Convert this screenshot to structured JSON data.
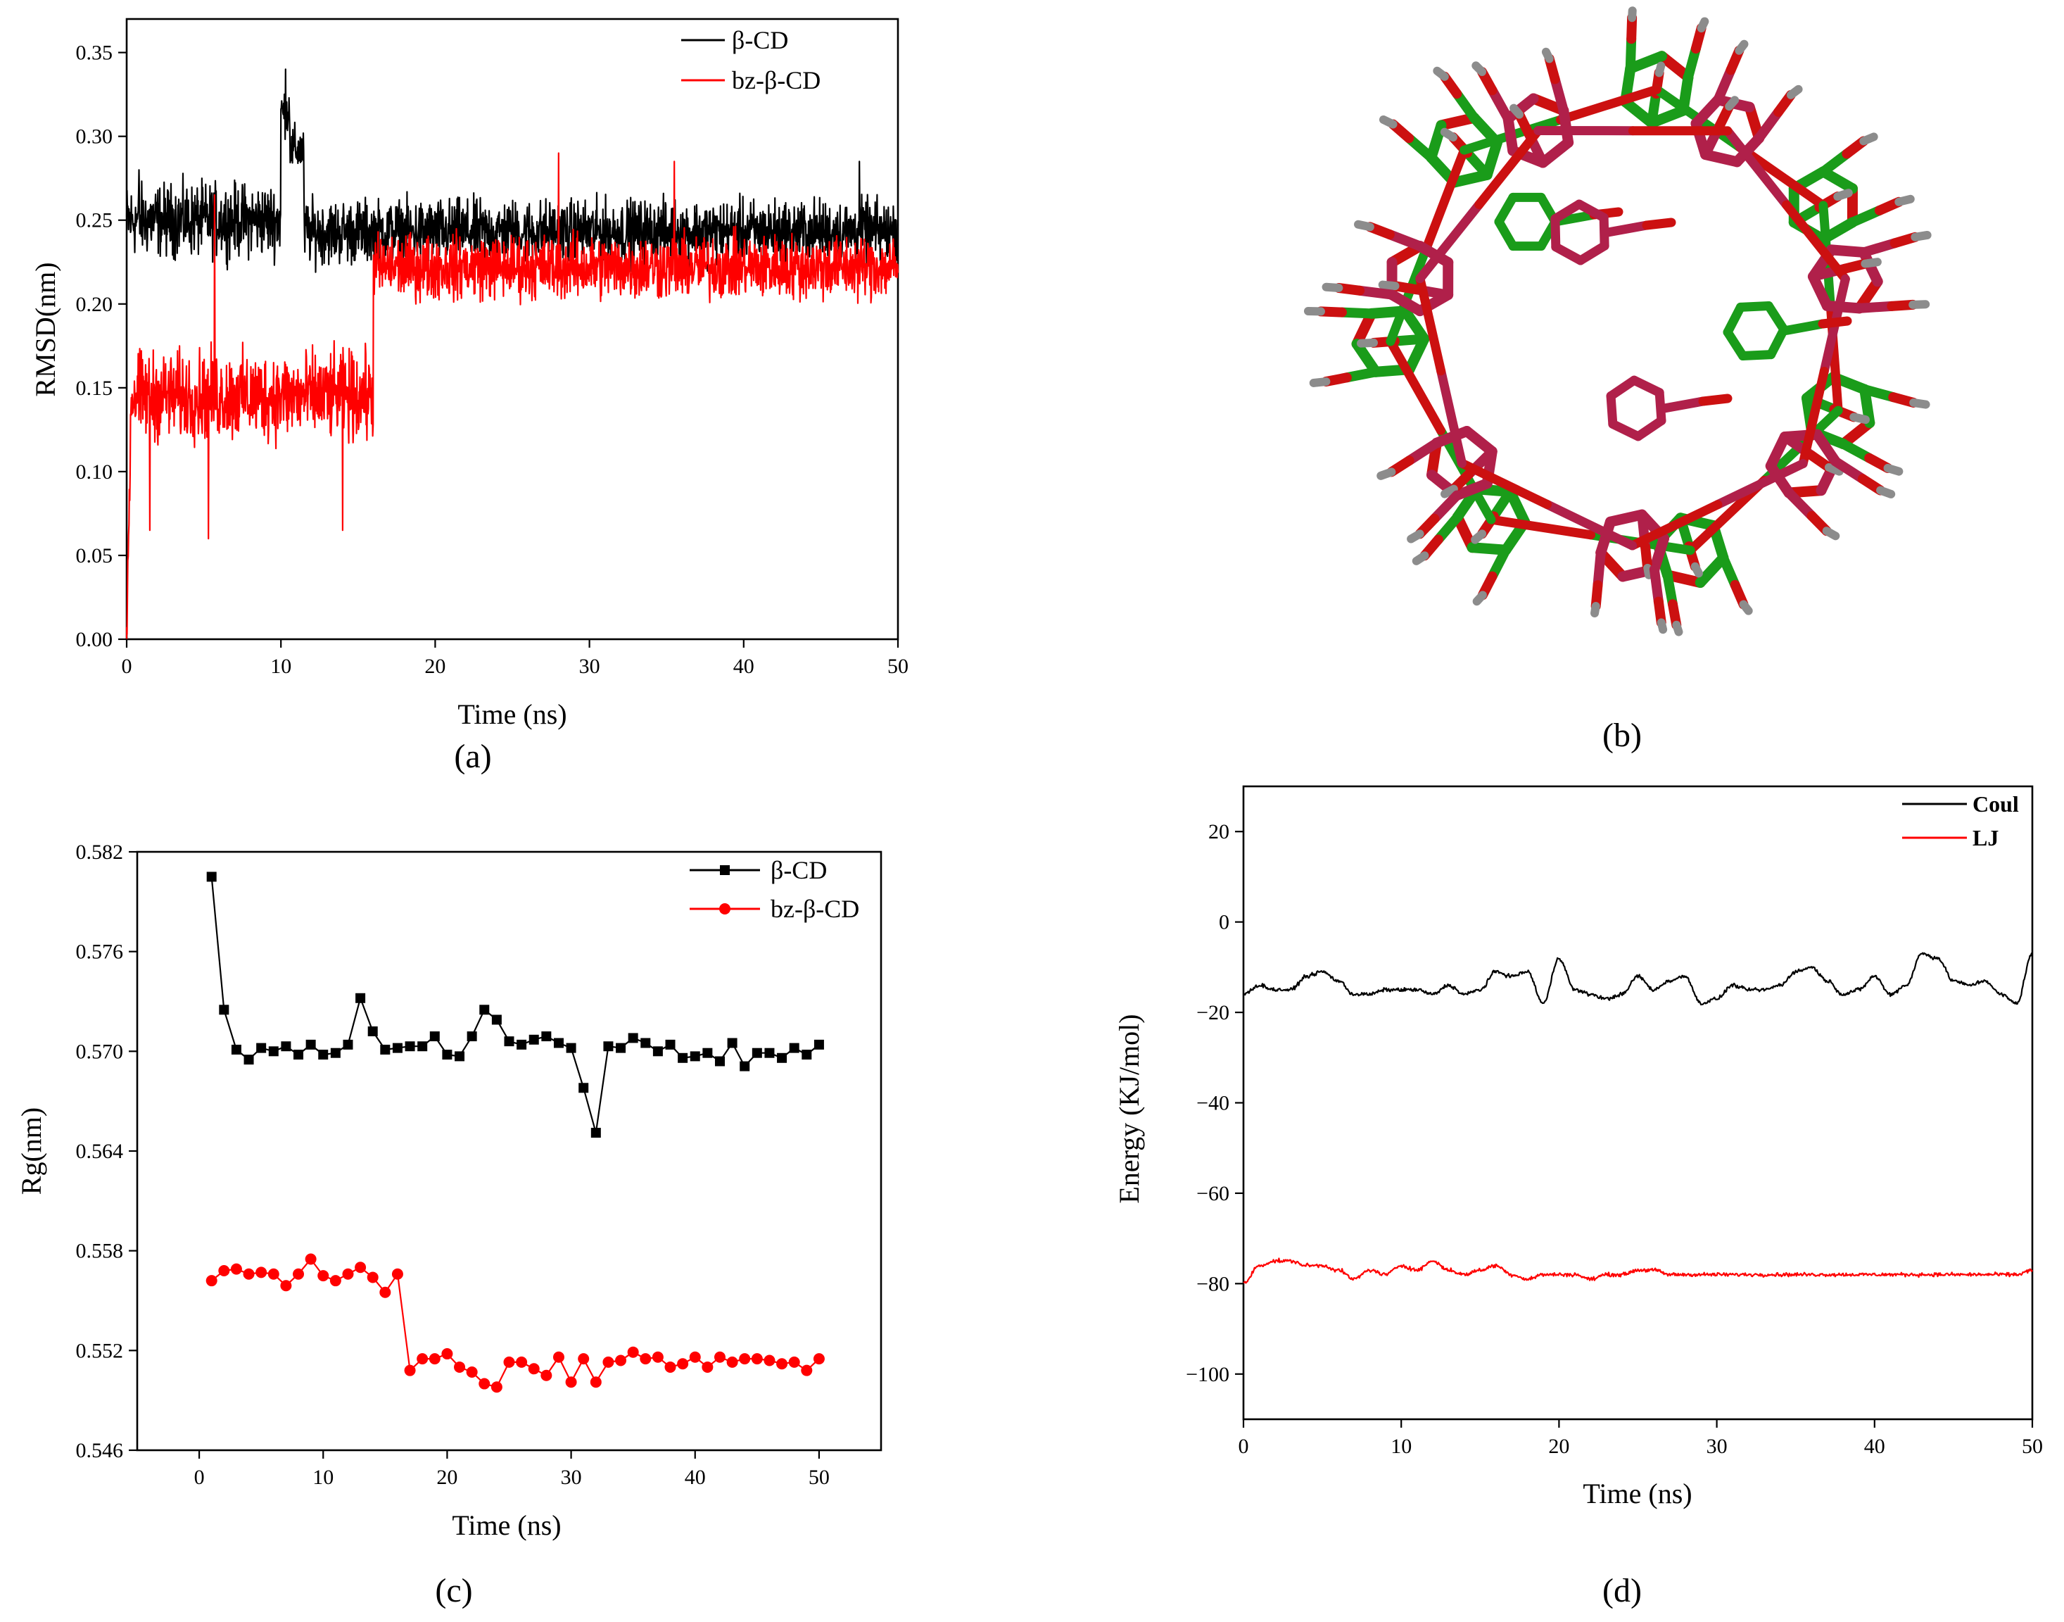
{
  "panels": {
    "a": {
      "label": "(a)"
    },
    "b": {
      "label": "(b)",
      "image_description": "molecular structure overlay"
    },
    "c": {
      "label": "(c)"
    },
    "d": {
      "label": "(d)"
    }
  },
  "colors": {
    "black": "#000000",
    "red": "#ff0000",
    "green": "#1a9c1a",
    "crimson": "#b0204a",
    "oxygen": "#cc1010",
    "hydrogen": "#8c8c8c"
  },
  "chart_data": [
    {
      "id": "a",
      "type": "line",
      "title": "",
      "xlabel": "Time (ns)",
      "ylabel": "RMSD(nm)",
      "xlim": [
        0,
        50
      ],
      "ylim": [
        0,
        0.37
      ],
      "xticks": [
        "0",
        "10",
        "20",
        "30",
        "40",
        "50"
      ],
      "yticks": [
        "0.00",
        "0.05",
        "0.10",
        "0.15",
        "0.20",
        "0.25",
        "0.30",
        "0.35"
      ],
      "legend_position": "top-right",
      "series": [
        {
          "name": "β-CD",
          "color": "#000000",
          "segments": [
            {
              "from": 0,
              "to": 10,
              "mean": 0.25,
              "noise": 0.018
            },
            {
              "from": 10,
              "to": 10.6,
              "mean": 0.315,
              "noise": 0.012
            },
            {
              "from": 10.6,
              "to": 11.5,
              "mean": 0.292,
              "noise": 0.012
            },
            {
              "from": 11.5,
              "to": 50,
              "mean": 0.243,
              "noise": 0.016
            }
          ],
          "spikes": [
            {
              "x": 10.3,
              "y": 0.34
            },
            {
              "x": 0.8,
              "y": 0.28
            },
            {
              "x": 47.5,
              "y": 0.285
            }
          ]
        },
        {
          "name": "bz-β-CD",
          "color": "#ff0000",
          "segments": [
            {
              "from": 0,
              "to": 16,
              "mean": 0.145,
              "noise": 0.022
            },
            {
              "from": 16,
              "to": 50,
              "mean": 0.222,
              "noise": 0.016
            }
          ],
          "spikes": [
            {
              "x": 5.7,
              "y": 0.265
            },
            {
              "x": 5.3,
              "y": 0.06
            },
            {
              "x": 1.5,
              "y": 0.065
            },
            {
              "x": 14,
              "y": 0.065
            },
            {
              "x": 28,
              "y": 0.29
            },
            {
              "x": 35.5,
              "y": 0.285
            }
          ],
          "start": {
            "x": 0,
            "y": 0.0
          }
        }
      ]
    },
    {
      "id": "c",
      "type": "line",
      "title": "",
      "xlabel": "Time (ns)",
      "ylabel": "Rg(nm)",
      "xlim": [
        -5,
        55
      ],
      "ylim": [
        0.546,
        0.582
      ],
      "xticks": [
        "0",
        "10",
        "20",
        "30",
        "40",
        "50"
      ],
      "yticks": [
        "0.546",
        "0.552",
        "0.558",
        "0.564",
        "0.570",
        "0.576",
        "0.582"
      ],
      "legend_position": "top-right",
      "series": [
        {
          "name": "β-CD",
          "color": "#000000",
          "marker": "square",
          "x": [
            1,
            2,
            3,
            4,
            5,
            6,
            7,
            8,
            9,
            10,
            11,
            12,
            13,
            14,
            15,
            16,
            17,
            18,
            19,
            20,
            21,
            22,
            23,
            24,
            25,
            26,
            27,
            28,
            29,
            30,
            31,
            32,
            33,
            34,
            35,
            36,
            37,
            38,
            39,
            40,
            41,
            42,
            43,
            44,
            45,
            46,
            47,
            48,
            49,
            50
          ],
          "y": [
            0.5805,
            0.5725,
            0.5701,
            0.5695,
            0.5702,
            0.57,
            0.5703,
            0.5698,
            0.5704,
            0.5698,
            0.5699,
            0.5704,
            0.5732,
            0.5712,
            0.5701,
            0.5702,
            0.5703,
            0.5703,
            0.5709,
            0.5698,
            0.5697,
            0.5709,
            0.5725,
            0.5719,
            0.5706,
            0.5704,
            0.5707,
            0.5709,
            0.5705,
            0.5702,
            0.5678,
            0.5651,
            0.5703,
            0.5702,
            0.5708,
            0.5705,
            0.57,
            0.5704,
            0.5696,
            0.5697,
            0.5699,
            0.5694,
            0.5705,
            0.5691,
            0.5699,
            0.5699,
            0.5696,
            0.5702,
            0.5698,
            0.5704
          ]
        },
        {
          "name": "bz-β-CD",
          "color": "#ff0000",
          "marker": "circle",
          "x": [
            1,
            2,
            3,
            4,
            5,
            6,
            7,
            8,
            9,
            10,
            11,
            12,
            13,
            14,
            15,
            16,
            17,
            18,
            19,
            20,
            21,
            22,
            23,
            24,
            25,
            26,
            27,
            28,
            29,
            30,
            31,
            32,
            33,
            34,
            35,
            36,
            37,
            38,
            39,
            40,
            41,
            42,
            43,
            44,
            45,
            46,
            47,
            48,
            49,
            50
          ],
          "y": [
            0.5562,
            0.5568,
            0.5569,
            0.5566,
            0.5567,
            0.5566,
            0.5559,
            0.5566,
            0.5575,
            0.5565,
            0.5562,
            0.5566,
            0.557,
            0.5564,
            0.5555,
            0.5566,
            0.5508,
            0.5515,
            0.5515,
            0.5518,
            0.551,
            0.5507,
            0.55,
            0.5498,
            0.5513,
            0.5513,
            0.5509,
            0.5505,
            0.5516,
            0.5501,
            0.5515,
            0.5501,
            0.5513,
            0.5514,
            0.5519,
            0.5515,
            0.5516,
            0.551,
            0.5512,
            0.5516,
            0.551,
            0.5516,
            0.5513,
            0.5515,
            0.5515,
            0.5514,
            0.5512,
            0.5513,
            0.5508,
            0.5515
          ]
        }
      ]
    },
    {
      "id": "d",
      "type": "line",
      "title": "",
      "xlabel": "Time (ns)",
      "ylabel": "Energy (KJ/mol)",
      "xlim": [
        0,
        50
      ],
      "ylim": [
        -110,
        30
      ],
      "xticks": [
        "0",
        "10",
        "20",
        "30",
        "40",
        "50"
      ],
      "yticks": [
        "20",
        "0",
        "−20",
        "−40",
        "−60",
        "−80",
        "−100"
      ],
      "legend_position": "top-right",
      "series": [
        {
          "name": "Coul",
          "color": "#000000",
          "x": [
            0,
            1,
            2,
            3,
            4,
            5,
            6,
            7,
            8,
            9,
            10,
            11,
            12,
            13,
            14,
            15,
            16,
            17,
            18,
            19,
            20,
            21,
            22,
            23,
            24,
            25,
            26,
            27,
            28,
            29,
            30,
            31,
            32,
            33,
            34,
            35,
            36,
            37,
            38,
            39,
            40,
            41,
            42,
            43,
            44,
            45,
            46,
            47,
            48,
            49,
            50
          ],
          "y": [
            -16,
            -14,
            -15,
            -15,
            -12,
            -11,
            -13,
            -16,
            -16,
            -15,
            -15,
            -15,
            -16,
            -14,
            -16,
            -15,
            -11,
            -12,
            -11,
            -18,
            -8,
            -15,
            -16,
            -17,
            -16,
            -12,
            -15,
            -13,
            -12,
            -18,
            -17,
            -14,
            -15,
            -15,
            -14,
            -11,
            -10,
            -13,
            -16,
            -15,
            -12,
            -16,
            -14,
            -7,
            -8,
            -13,
            -14,
            -13,
            -16,
            -18,
            -7
          ]
        },
        {
          "name": "LJ",
          "color": "#ff0000",
          "x": [
            0,
            1,
            2,
            3,
            4,
            5,
            6,
            7,
            8,
            9,
            10,
            11,
            12,
            13,
            14,
            15,
            16,
            17,
            18,
            19,
            20,
            21,
            22,
            23,
            24,
            25,
            26,
            27,
            28,
            29,
            30,
            31,
            32,
            33,
            34,
            35,
            36,
            37,
            38,
            39,
            40,
            41,
            42,
            43,
            44,
            45,
            46,
            47,
            48,
            49,
            50
          ],
          "y": [
            -80,
            -76,
            -75,
            -75,
            -76,
            -76,
            -77,
            -79,
            -77,
            -78,
            -76,
            -77,
            -75,
            -77,
            -78,
            -77,
            -76,
            -78,
            -79,
            -78,
            -78,
            -78,
            -79,
            -78,
            -78,
            -77,
            -77,
            -78,
            -78,
            -78,
            -78,
            -78,
            -78,
            -78,
            -78,
            -78,
            -78,
            -78,
            -78,
            -78,
            -78,
            -78,
            -78,
            -78,
            -78,
            -78,
            -78,
            -78,
            -78,
            -78,
            -77
          ]
        }
      ]
    }
  ]
}
